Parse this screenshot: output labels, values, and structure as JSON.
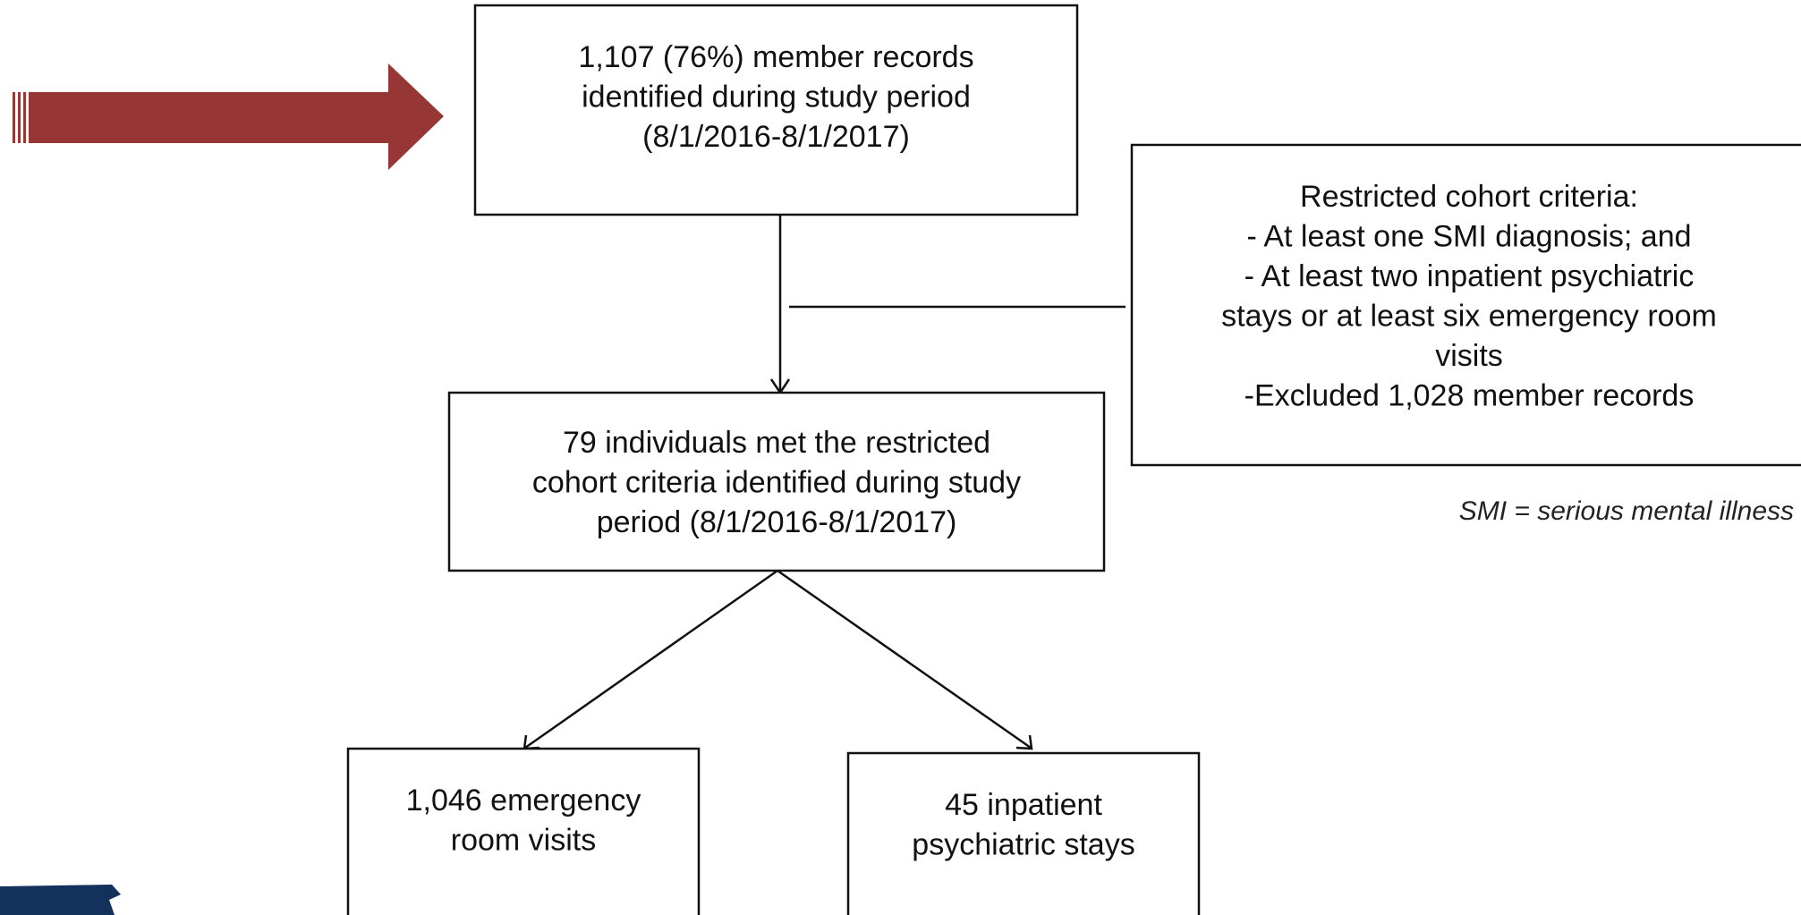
{
  "nodes": [
    {
      "lines": [
        "1,107 (76%) member records",
        "identified during study period",
        "(8/1/2016-8/1/2017)"
      ]
    },
    {
      "lines": [
        "Restricted cohort criteria:",
        "- At least one SMI diagnosis; and",
        "- At least two inpatient psychiatric",
        "stays or at least six emergency room",
        "visits",
        "-Excluded 1,028 member records"
      ]
    },
    {
      "lines": [
        "79 individuals met the restricted",
        "cohort criteria identified during study",
        "period (8/1/2016-8/1/2017)"
      ]
    },
    {
      "lines": [
        "1,046 emergency",
        "room visits"
      ]
    },
    {
      "lines": [
        "45 inpatient",
        "psychiatric stays"
      ]
    }
  ],
  "note": "SMI = serious mental illness"
}
